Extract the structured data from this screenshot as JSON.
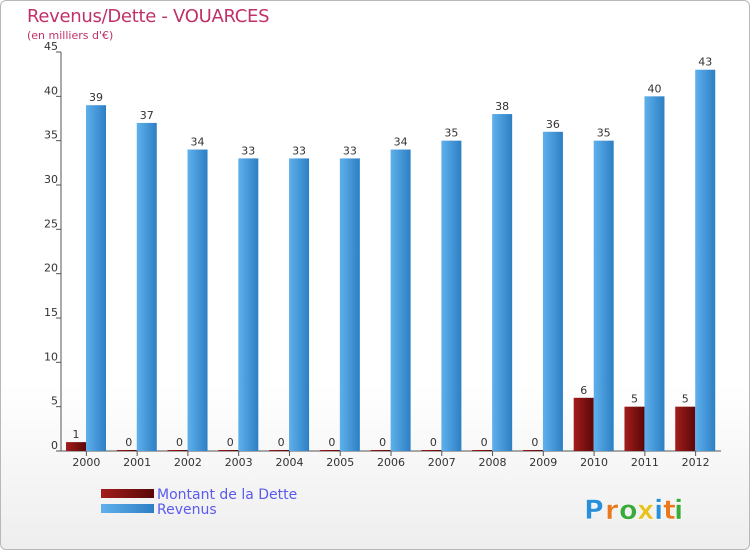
{
  "title": "Revenus/Dette - VOUARCES",
  "subtitle": "(en milliers d'€)",
  "logo": {
    "text": "Proxiti",
    "letters": [
      "P",
      "r",
      "o",
      "x",
      "i",
      "t",
      "i"
    ],
    "colors": [
      "#2a8fd8",
      "#e8791e",
      "#3aaa3a",
      "#e8c21e",
      "#2a8fd8",
      "#e8791e",
      "#3aaa3a"
    ]
  },
  "chart_data": {
    "type": "bar",
    "title": "Revenus/Dette - VOUARCES",
    "subtitle": "(en milliers d'€)",
    "categories": [
      "2000",
      "2001",
      "2002",
      "2003",
      "2004",
      "2005",
      "2006",
      "2007",
      "2008",
      "2009",
      "2010",
      "2011",
      "2012"
    ],
    "ylim": [
      0,
      45
    ],
    "yticks": [
      0,
      5,
      10,
      15,
      20,
      25,
      30,
      35,
      40,
      45
    ],
    "grid": false,
    "legend_position": "bottom-left",
    "series": [
      {
        "name": "Montant de la Dette",
        "color": "#7a0f0f",
        "values": [
          1,
          0,
          0,
          0,
          0,
          0,
          0,
          0,
          0,
          0,
          6,
          5,
          5
        ]
      },
      {
        "name": "Revenus",
        "color": "#3f98dd",
        "values": [
          39,
          37,
          34,
          33,
          33,
          33,
          34,
          35,
          38,
          36,
          35,
          40,
          43
        ]
      }
    ]
  }
}
